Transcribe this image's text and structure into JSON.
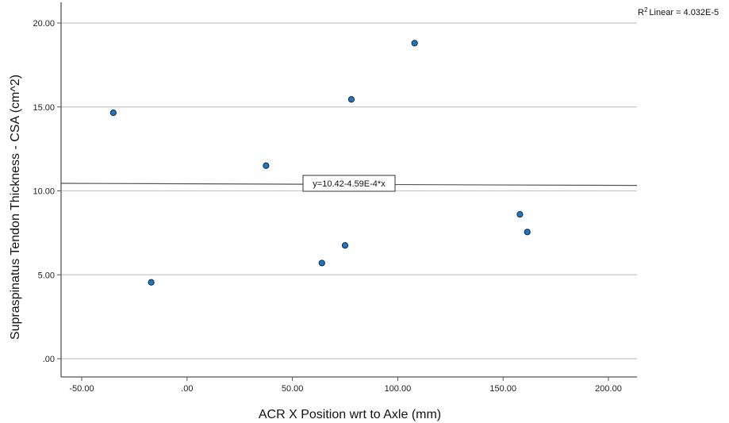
{
  "chart_data": {
    "type": "scatter",
    "xlabel": "ACR X Position wrt to Axle (mm)",
    "ylabel": "Supraspinatus Tendon Thickness - CSA (cm^2)",
    "xlim": [
      -65,
      210
    ],
    "ylim": [
      -1,
      21
    ],
    "x_ticks": [
      -50,
      0,
      50,
      100,
      150,
      200
    ],
    "x_tick_labels": [
      "-50.00",
      ".00",
      "50.00",
      "100.00",
      "150.00",
      "200.00"
    ],
    "y_ticks": [
      0,
      5,
      10,
      15,
      20
    ],
    "y_tick_labels": [
      ".00",
      "5.00",
      "10.00",
      "15.00",
      "20.00"
    ],
    "grid": "horizontal",
    "points": [
      {
        "x": -35,
        "y": 14.65
      },
      {
        "x": -17,
        "y": 4.55
      },
      {
        "x": 37.5,
        "y": 11.5
      },
      {
        "x": 64,
        "y": 5.7
      },
      {
        "x": 75,
        "y": 6.75
      },
      {
        "x": 78,
        "y": 15.45
      },
      {
        "x": 108,
        "y": 18.8
      },
      {
        "x": 158,
        "y": 8.6
      },
      {
        "x": 161.5,
        "y": 7.55
      }
    ],
    "fit_line": {
      "intercept": 10.42,
      "slope": -0.000459
    },
    "fit_label": "y=10.42-4.59E-4*x",
    "r2_label": "Linear = 4.032E-5",
    "r2_prefix": "R",
    "r2_sup": "2",
    "colors": {
      "point_fill": "#1f77c0",
      "point_stroke": "#0d2a45",
      "grid": "#c8c8c8",
      "axis": "#555555",
      "fit_line": "#555555"
    }
  }
}
